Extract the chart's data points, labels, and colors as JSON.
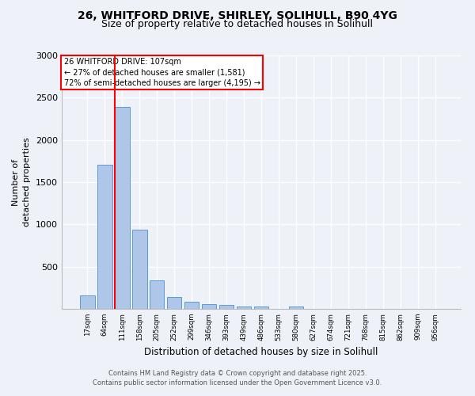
{
  "title_line1": "26, WHITFORD DRIVE, SHIRLEY, SOLIHULL, B90 4YG",
  "title_line2": "Size of property relative to detached houses in Solihull",
  "xlabel": "Distribution of detached houses by size in Solihull",
  "ylabel": "Number of\ndetached properties",
  "categories": [
    "17sqm",
    "64sqm",
    "111sqm",
    "158sqm",
    "205sqm",
    "252sqm",
    "299sqm",
    "346sqm",
    "393sqm",
    "439sqm",
    "486sqm",
    "533sqm",
    "580sqm",
    "627sqm",
    "674sqm",
    "721sqm",
    "768sqm",
    "815sqm",
    "862sqm",
    "909sqm",
    "956sqm"
  ],
  "values": [
    155,
    1710,
    2390,
    940,
    340,
    145,
    85,
    60,
    50,
    30,
    30,
    0,
    30,
    0,
    0,
    0,
    0,
    0,
    0,
    0,
    0
  ],
  "bar_color": "#aec6e8",
  "bar_edge_color": "#5a9bd4",
  "vline_x_index": 2,
  "vline_color": "red",
  "annotation_title": "26 WHITFORD DRIVE: 107sqm",
  "annotation_line2": "← 27% of detached houses are smaller (1,581)",
  "annotation_line3": "72% of semi-detached houses are larger (4,195) →",
  "annotation_box_color": "red",
  "annotation_bg": "white",
  "ylim": [
    0,
    3000
  ],
  "yticks": [
    0,
    500,
    1000,
    1500,
    2000,
    2500,
    3000
  ],
  "footnote1": "Contains HM Land Registry data © Crown copyright and database right 2025.",
  "footnote2": "Contains public sector information licensed under the Open Government Licence v3.0.",
  "bg_color": "#eef2f8",
  "plot_bg_color": "#eef2f8"
}
